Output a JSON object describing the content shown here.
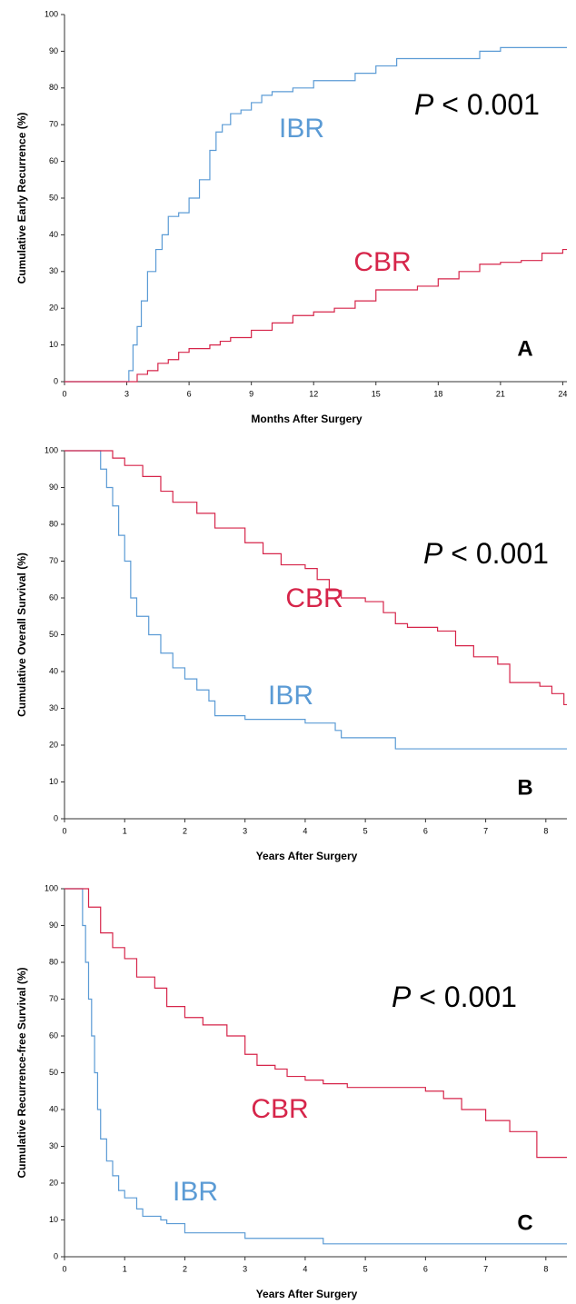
{
  "chart_data": [
    {
      "type": "line",
      "step": true,
      "panel_label": "A",
      "annotation": [
        "P",
        "< 0.001"
      ],
      "xlabel": "Months After Surgery",
      "ylabel": "Cumulative Early Recurrence (%)",
      "xlim": [
        0,
        24.2
      ],
      "xticks": [
        0,
        3,
        6,
        9,
        12,
        15,
        18,
        21,
        24
      ],
      "ylim": [
        0,
        100
      ],
      "yticks": [
        0,
        10,
        20,
        30,
        40,
        50,
        60,
        70,
        80,
        90,
        100
      ],
      "series": [
        {
          "name": "IBR",
          "color": "#5b9bd5",
          "x": [
            0,
            3,
            3.1,
            3.3,
            3.5,
            3.7,
            4,
            4.4,
            4.7,
            5,
            5.5,
            6,
            6.5,
            7,
            7.3,
            7.6,
            8,
            8.5,
            9,
            9.5,
            10,
            11,
            12,
            14,
            15,
            16,
            20,
            21,
            24.2
          ],
          "values": [
            0,
            0,
            3,
            10,
            15,
            22,
            30,
            36,
            40,
            45,
            46,
            50,
            55,
            63,
            68,
            70,
            73,
            74,
            76,
            78,
            79,
            80,
            82,
            84,
            86,
            88,
            90,
            91,
            91
          ]
        },
        {
          "name": "CBR",
          "color": "#d6254a",
          "x": [
            0,
            3.2,
            3.5,
            4,
            4.5,
            5,
            5.5,
            6,
            7,
            7.5,
            8,
            9,
            10,
            11,
            12,
            13,
            14,
            15,
            17,
            18,
            19,
            20,
            21,
            22,
            23,
            24,
            24.2
          ],
          "values": [
            0,
            0,
            2,
            3,
            5,
            6,
            8,
            9,
            10,
            11,
            12,
            14,
            16,
            18,
            19,
            20,
            22,
            25,
            26,
            28,
            30,
            32,
            32.5,
            33,
            35,
            36,
            36
          ]
        }
      ]
    },
    {
      "type": "line",
      "step": true,
      "panel_label": "B",
      "annotation": [
        "P",
        "< 0.001"
      ],
      "xlabel": "Years After Surgery",
      "ylabel": "Cumulative Overall Survival (%)",
      "xlim": [
        0,
        8.35
      ],
      "xticks": [
        0,
        1,
        2,
        3,
        4,
        5,
        6,
        7,
        8
      ],
      "ylim": [
        0,
        100
      ],
      "yticks": [
        0,
        10,
        20,
        30,
        40,
        50,
        60,
        70,
        80,
        90,
        100
      ],
      "series": [
        {
          "name": "IBR",
          "color": "#5b9bd5",
          "x": [
            0,
            0.5,
            0.6,
            0.7,
            0.8,
            0.9,
            1.0,
            1.1,
            1.2,
            1.4,
            1.6,
            1.8,
            2.0,
            2.2,
            2.4,
            2.5,
            3,
            4,
            4.5,
            4.6,
            5.5,
            8.35
          ],
          "values": [
            100,
            100,
            95,
            90,
            85,
            77,
            70,
            60,
            55,
            50,
            45,
            41,
            38,
            35,
            32,
            28,
            27,
            26,
            24,
            22,
            19,
            19
          ]
        },
        {
          "name": "CBR",
          "color": "#d6254a",
          "x": [
            0,
            0.5,
            0.8,
            1,
            1.3,
            1.6,
            1.8,
            2.2,
            2.5,
            3,
            3.3,
            3.6,
            4,
            4.2,
            4.4,
            4.6,
            5,
            5.3,
            5.5,
            5.7,
            6.2,
            6.5,
            6.8,
            7.2,
            7.4,
            7.9,
            8.1,
            8.3,
            8.35
          ],
          "values": [
            100,
            100,
            98,
            96,
            93,
            89,
            86,
            83,
            79,
            75,
            72,
            69,
            68,
            65,
            62,
            60,
            59,
            56,
            53,
            52,
            51,
            47,
            44,
            42,
            37,
            36,
            34,
            31,
            31
          ]
        }
      ]
    },
    {
      "type": "line",
      "step": true,
      "panel_label": "C",
      "annotation": [
        "P",
        "< 0.001"
      ],
      "xlabel": "Years After Surgery",
      "ylabel": "Cumulative Recurrence-free Survival (%)",
      "xlim": [
        0,
        8.35
      ],
      "xticks": [
        0,
        1,
        2,
        3,
        4,
        5,
        6,
        7,
        8
      ],
      "ylim": [
        0,
        100
      ],
      "yticks": [
        0,
        10,
        20,
        30,
        40,
        50,
        60,
        70,
        80,
        90,
        100
      ],
      "series": [
        {
          "name": "IBR",
          "color": "#5b9bd5",
          "x": [
            0,
            0.25,
            0.3,
            0.35,
            0.4,
            0.45,
            0.5,
            0.55,
            0.6,
            0.7,
            0.8,
            0.9,
            1.0,
            1.2,
            1.3,
            1.6,
            1.7,
            2,
            3,
            4.3,
            8.35
          ],
          "values": [
            100,
            100,
            90,
            80,
            70,
            60,
            50,
            40,
            32,
            26,
            22,
            18,
            16,
            13,
            11,
            10,
            9,
            6.5,
            5,
            3.5,
            3.5
          ]
        },
        {
          "name": "CBR",
          "color": "#d6254a",
          "x": [
            0,
            0.25,
            0.4,
            0.6,
            0.8,
            1,
            1.2,
            1.5,
            1.7,
            2,
            2.3,
            2.7,
            3,
            3.2,
            3.5,
            3.7,
            4,
            4.3,
            4.7,
            6,
            6.3,
            6.6,
            7,
            7.4,
            7.85,
            8.35
          ],
          "values": [
            100,
            100,
            95,
            88,
            84,
            81,
            76,
            73,
            68,
            65,
            63,
            60,
            55,
            52,
            51,
            49,
            48,
            47,
            46,
            45,
            43,
            40,
            37,
            34,
            27,
            27
          ]
        }
      ]
    }
  ]
}
